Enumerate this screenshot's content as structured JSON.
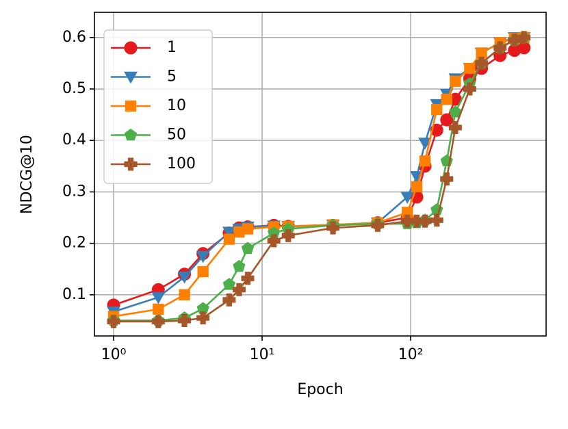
{
  "chart_data": {
    "type": "line",
    "x_label": "Epoch",
    "y_label": "NDCG@10",
    "x_scale": "log",
    "grid": true,
    "legend_position": "upper-left",
    "x": [
      1,
      2,
      3,
      4,
      6,
      7,
      8,
      12,
      15,
      30,
      60,
      95,
      110,
      125,
      150,
      175,
      200,
      250,
      300,
      400,
      500,
      580
    ],
    "series": [
      {
        "name": "1",
        "color": "#e41a1c",
        "marker": "circle",
        "values": [
          0.08,
          0.11,
          0.14,
          0.18,
          0.22,
          0.23,
          0.232,
          0.235,
          0.233,
          0.235,
          0.24,
          0.25,
          0.29,
          0.35,
          0.42,
          0.44,
          0.48,
          0.52,
          0.54,
          0.565,
          0.575,
          0.58
        ]
      },
      {
        "name": "5",
        "color": "#377eb8",
        "marker": "triangle-down",
        "values": [
          0.067,
          0.095,
          0.135,
          0.175,
          0.222,
          0.228,
          0.232,
          0.234,
          0.233,
          0.236,
          0.24,
          0.29,
          0.33,
          0.395,
          0.47,
          0.49,
          0.52,
          0.54,
          0.57,
          0.59,
          0.6,
          0.6
        ]
      },
      {
        "name": "10",
        "color": "#ff7f00",
        "marker": "square",
        "values": [
          0.058,
          0.072,
          0.1,
          0.145,
          0.208,
          0.222,
          0.228,
          0.232,
          0.233,
          0.236,
          0.24,
          0.26,
          0.31,
          0.36,
          0.46,
          0.48,
          0.515,
          0.54,
          0.57,
          0.59,
          0.598,
          0.6
        ]
      },
      {
        "name": "50",
        "color": "#4daf4a",
        "marker": "pentagon",
        "values": [
          0.05,
          0.05,
          0.055,
          0.073,
          0.12,
          0.155,
          0.19,
          0.22,
          0.228,
          0.235,
          0.238,
          0.238,
          0.24,
          0.245,
          0.265,
          0.36,
          0.455,
          0.51,
          0.55,
          0.58,
          0.595,
          0.6
        ]
      },
      {
        "name": "100",
        "color": "#a65628",
        "marker": "plus",
        "values": [
          0.048,
          0.048,
          0.05,
          0.055,
          0.09,
          0.11,
          0.132,
          0.205,
          0.215,
          0.23,
          0.235,
          0.243,
          0.243,
          0.243,
          0.245,
          0.325,
          0.425,
          0.5,
          0.55,
          0.58,
          0.595,
          0.6
        ]
      }
    ],
    "xlim": [
      0.743,
      817
    ],
    "xticks": [
      {
        "value": 1,
        "label": "10⁰"
      },
      {
        "value": 10,
        "label": "10¹"
      },
      {
        "value": 100,
        "label": "10²"
      }
    ],
    "ylim": [
      0.02,
      0.649
    ],
    "yticks": [
      0.1,
      0.2,
      0.3,
      0.4,
      0.5,
      0.6
    ]
  }
}
